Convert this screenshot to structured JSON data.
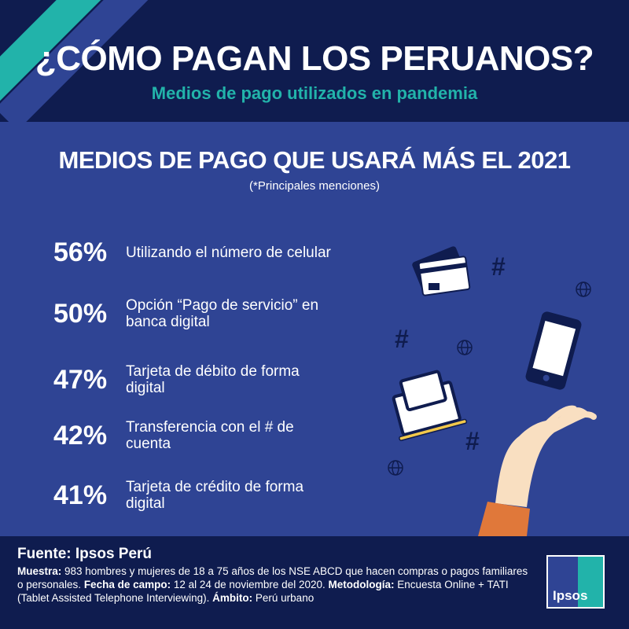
{
  "header": {
    "title": "¿CÓMO PAGAN LOS PERUANOS?",
    "subtitle": "Medios de pago utilizados en pandemia"
  },
  "section": {
    "title": "MEDIOS DE PAGO QUE USARÁ MÁS EL 2021",
    "note": "(*Principales menciones)"
  },
  "items": [
    {
      "percent": "56%",
      "label": "Utilizando el número de celular"
    },
    {
      "percent": "50%",
      "label": "Opción “Pago de servicio” en banca digital"
    },
    {
      "percent": "47%",
      "label": "Tarjeta de débito de forma digital"
    },
    {
      "percent": "42%",
      "label": "Transferencia con el # de cuenta"
    },
    {
      "percent": "41%",
      "label": "Tarjeta de crédito de forma digital"
    }
  ],
  "footer": {
    "source": "Fuente: Ipsos Perú",
    "sample_label": "Muestra:",
    "sample": " 983 hombres y mujeres de 18 a 75 años de los NSE ABCD que hacen compras o pagos familiares o personales. ",
    "date_label": "Fecha de campo:",
    "date": " 12 al 24 de noviembre del 2020. ",
    "method_label": "Metodología:",
    "method": " Encuesta Online + TATI (Tablet Assisted Telephone Interviewing). ",
    "scope_label": "Ámbito:",
    "scope": " Perú urbano"
  },
  "logo": {
    "text": "Ipsos"
  },
  "colors": {
    "navy": "#0f1c4f",
    "blue": "#2f4494",
    "teal": "#22b3aa",
    "orange": "#e0783a",
    "skin": "#f9dfc1"
  },
  "icons": [
    "credit-card-icon",
    "hashtag-icon",
    "globe-icon",
    "smartphone-icon",
    "laptop-chat-icon",
    "hand-icon"
  ]
}
